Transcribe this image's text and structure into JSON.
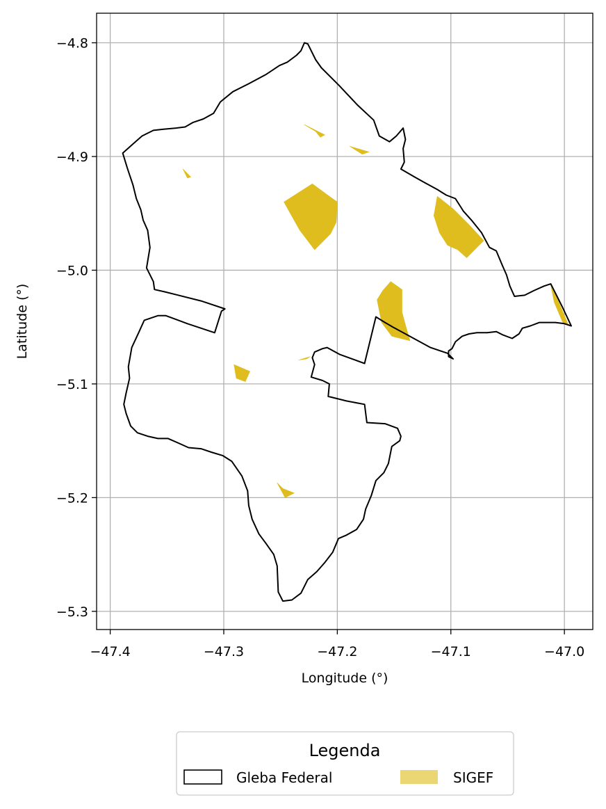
{
  "chart_data": {
    "type": "map",
    "xlabel": "Longitude (°)",
    "ylabel": "Latitude (°)",
    "xlim": [
      -47.412,
      -46.975
    ],
    "ylim": [
      -5.316,
      -4.774
    ],
    "xticks": [
      -47.4,
      -47.3,
      -47.2,
      -47.1,
      -47.0
    ],
    "yticks": [
      -4.8,
      -4.9,
      -5.0,
      -5.1,
      -5.2,
      -5.3
    ],
    "xtick_labels": [
      "−47.4",
      "−47.3",
      "−47.2",
      "−47.1",
      "−47.0"
    ],
    "ytick_labels": [
      "−4.8",
      "−4.9",
      "−5.0",
      "−5.1",
      "−5.2",
      "−5.3"
    ],
    "grid": true,
    "legend": {
      "title": "Legenda",
      "placement": "bottom-center",
      "entries": [
        {
          "label": "Gleba Federal",
          "style": "outline",
          "color": "#000000"
        },
        {
          "label": "SIGEF",
          "style": "fill",
          "color": "#dfbd1f"
        }
      ]
    },
    "layers": [
      {
        "name": "Gleba Federal",
        "kind": "polygon-outline",
        "color": "#000000",
        "coordinates": [
          [
            -47.229,
            -4.8
          ],
          [
            -47.226,
            -4.801
          ],
          [
            -47.219,
            -4.815
          ],
          [
            -47.214,
            -4.822
          ],
          [
            -47.198,
            -4.838
          ],
          [
            -47.182,
            -4.855
          ],
          [
            -47.168,
            -4.868
          ],
          [
            -47.163,
            -4.882
          ],
          [
            -47.154,
            -4.887
          ],
          [
            -47.148,
            -4.882
          ],
          [
            -47.142,
            -4.875
          ],
          [
            -47.14,
            -4.885
          ],
          [
            -47.142,
            -4.893
          ],
          [
            -47.141,
            -4.905
          ],
          [
            -47.144,
            -4.911
          ],
          [
            -47.132,
            -4.918
          ],
          [
            -47.123,
            -4.923
          ],
          [
            -47.112,
            -4.929
          ],
          [
            -47.104,
            -4.934
          ],
          [
            -47.096,
            -4.937
          ],
          [
            -47.089,
            -4.948
          ],
          [
            -47.081,
            -4.957
          ],
          [
            -47.073,
            -4.967
          ],
          [
            -47.066,
            -4.98
          ],
          [
            -47.06,
            -4.983
          ],
          [
            -47.055,
            -4.995
          ],
          [
            -47.051,
            -5.004
          ],
          [
            -47.048,
            -5.014
          ],
          [
            -47.044,
            -5.023
          ],
          [
            -47.035,
            -5.022
          ],
          [
            -47.027,
            -5.018
          ],
          [
            -47.018,
            -5.014
          ],
          [
            -47.012,
            -5.012
          ],
          [
            -47.002,
            -5.032
          ],
          [
            -46.994,
            -5.049
          ],
          [
            -47.0,
            -5.047
          ],
          [
            -47.008,
            -5.046
          ],
          [
            -47.015,
            -5.046
          ],
          [
            -47.022,
            -5.046
          ],
          [
            -47.03,
            -5.049
          ],
          [
            -47.037,
            -5.051
          ],
          [
            -47.04,
            -5.056
          ],
          [
            -47.046,
            -5.06
          ],
          [
            -47.054,
            -5.057
          ],
          [
            -47.06,
            -5.054
          ],
          [
            -47.068,
            -5.055
          ],
          [
            -47.077,
            -5.055
          ],
          [
            -47.084,
            -5.056
          ],
          [
            -47.09,
            -5.058
          ],
          [
            -47.096,
            -5.063
          ],
          [
            -47.099,
            -5.069
          ],
          [
            -47.102,
            -5.071
          ],
          [
            -47.102,
            -5.076
          ],
          [
            -47.098,
            -5.078
          ],
          [
            -47.103,
            -5.073
          ],
          [
            -47.118,
            -5.068
          ],
          [
            -47.14,
            -5.056
          ],
          [
            -47.151,
            -5.05
          ],
          [
            -47.158,
            -5.046
          ],
          [
            -47.166,
            -5.041
          ],
          [
            -47.176,
            -5.082
          ],
          [
            -47.198,
            -5.074
          ],
          [
            -47.209,
            -5.068
          ],
          [
            -47.213,
            -5.069
          ],
          [
            -47.22,
            -5.072
          ],
          [
            -47.222,
            -5.077
          ],
          [
            -47.22,
            -5.083
          ],
          [
            -47.223,
            -5.094
          ],
          [
            -47.213,
            -5.097
          ],
          [
            -47.207,
            -5.1
          ],
          [
            -47.208,
            -5.111
          ],
          [
            -47.192,
            -5.115
          ],
          [
            -47.176,
            -5.118
          ],
          [
            -47.174,
            -5.134
          ],
          [
            -47.158,
            -5.135
          ],
          [
            -47.147,
            -5.139
          ],
          [
            -47.144,
            -5.146
          ],
          [
            -47.145,
            -5.15
          ],
          [
            -47.152,
            -5.155
          ],
          [
            -47.155,
            -5.17
          ],
          [
            -47.159,
            -5.178
          ],
          [
            -47.166,
            -5.185
          ],
          [
            -47.17,
            -5.198
          ],
          [
            -47.175,
            -5.21
          ],
          [
            -47.177,
            -5.219
          ],
          [
            -47.183,
            -5.228
          ],
          [
            -47.192,
            -5.233
          ],
          [
            -47.199,
            -5.236
          ],
          [
            -47.204,
            -5.248
          ],
          [
            -47.211,
            -5.257
          ],
          [
            -47.218,
            -5.265
          ],
          [
            -47.226,
            -5.272
          ],
          [
            -47.232,
            -5.284
          ],
          [
            -47.24,
            -5.29
          ],
          [
            -47.248,
            -5.291
          ],
          [
            -47.252,
            -5.283
          ],
          [
            -47.253,
            -5.26
          ],
          [
            -47.256,
            -5.25
          ],
          [
            -47.263,
            -5.24
          ],
          [
            -47.269,
            -5.232
          ],
          [
            -47.275,
            -5.219
          ],
          [
            -47.278,
            -5.207
          ],
          [
            -47.279,
            -5.194
          ],
          [
            -47.284,
            -5.181
          ],
          [
            -47.293,
            -5.168
          ],
          [
            -47.301,
            -5.163
          ],
          [
            -47.311,
            -5.16
          ],
          [
            -47.32,
            -5.157
          ],
          [
            -47.331,
            -5.156
          ],
          [
            -47.34,
            -5.152
          ],
          [
            -47.349,
            -5.148
          ],
          [
            -47.358,
            -5.148
          ],
          [
            -47.367,
            -5.146
          ],
          [
            -47.376,
            -5.143
          ],
          [
            -47.382,
            -5.137
          ],
          [
            -47.386,
            -5.126
          ],
          [
            -47.388,
            -5.118
          ],
          [
            -47.386,
            -5.108
          ],
          [
            -47.383,
            -5.095
          ],
          [
            -47.384,
            -5.085
          ],
          [
            -47.381,
            -5.068
          ],
          [
            -47.375,
            -5.055
          ],
          [
            -47.37,
            -5.044
          ],
          [
            -47.358,
            -5.04
          ],
          [
            -47.351,
            -5.04
          ],
          [
            -47.332,
            -5.047
          ],
          [
            -47.308,
            -5.055
          ],
          [
            -47.302,
            -5.036
          ],
          [
            -47.299,
            -5.034
          ],
          [
            -47.32,
            -5.027
          ],
          [
            -47.352,
            -5.019
          ],
          [
            -47.361,
            -5.017
          ],
          [
            -47.362,
            -5.01
          ],
          [
            -47.368,
            -4.998
          ],
          [
            -47.365,
            -4.98
          ],
          [
            -47.367,
            -4.965
          ],
          [
            -47.371,
            -4.956
          ],
          [
            -47.373,
            -4.947
          ],
          [
            -47.377,
            -4.937
          ],
          [
            -47.38,
            -4.925
          ],
          [
            -47.385,
            -4.91
          ],
          [
            -47.389,
            -4.897
          ],
          [
            -47.38,
            -4.889
          ],
          [
            -47.372,
            -4.882
          ],
          [
            -47.362,
            -4.877
          ],
          [
            -47.353,
            -4.876
          ],
          [
            -47.342,
            -4.875
          ],
          [
            -47.334,
            -4.874
          ],
          [
            -47.327,
            -4.87
          ],
          [
            -47.318,
            -4.867
          ],
          [
            -47.309,
            -4.862
          ],
          [
            -47.303,
            -4.852
          ],
          [
            -47.292,
            -4.843
          ],
          [
            -47.278,
            -4.836
          ],
          [
            -47.263,
            -4.828
          ],
          [
            -47.251,
            -4.82
          ],
          [
            -47.244,
            -4.817
          ],
          [
            -47.236,
            -4.811
          ],
          [
            -47.232,
            -4.807
          ],
          [
            -47.229,
            -4.8
          ]
        ]
      },
      {
        "name": "SIGEF",
        "kind": "polygon-fill",
        "color": "#dfbd1f",
        "polygons": [
          [
            [
              -47.222,
              -4.924
            ],
            [
              -47.207,
              -4.935
            ],
            [
              -47.2,
              -4.94
            ],
            [
              -47.201,
              -4.958
            ],
            [
              -47.206,
              -4.968
            ],
            [
              -47.22,
              -4.982
            ],
            [
              -47.233,
              -4.965
            ],
            [
              -47.247,
              -4.94
            ],
            [
              -47.236,
              -4.933
            ],
            [
              -47.222,
              -4.924
            ]
          ],
          [
            [
              -47.112,
              -4.935
            ],
            [
              -47.098,
              -4.946
            ],
            [
              -47.084,
              -4.96
            ],
            [
              -47.071,
              -4.974
            ],
            [
              -47.077,
              -4.98
            ],
            [
              -47.086,
              -4.989
            ],
            [
              -47.094,
              -4.982
            ],
            [
              -47.103,
              -4.978
            ],
            [
              -47.11,
              -4.967
            ],
            [
              -47.115,
              -4.952
            ],
            [
              -47.112,
              -4.935
            ]
          ],
          [
            [
              -47.143,
              -5.017
            ],
            [
              -47.153,
              -5.01
            ],
            [
              -47.16,
              -5.018
            ],
            [
              -47.165,
              -5.026
            ],
            [
              -47.161,
              -5.046
            ],
            [
              -47.152,
              -5.058
            ],
            [
              -47.136,
              -5.062
            ],
            [
              -47.14,
              -5.048
            ],
            [
              -47.143,
              -5.037
            ],
            [
              -47.143,
              -5.017
            ]
          ],
          [
            [
              -47.012,
              -5.013
            ],
            [
              -47.005,
              -5.028
            ],
            [
              -46.997,
              -5.047
            ],
            [
              -47.001,
              -5.047
            ],
            [
              -47.009,
              -5.028
            ],
            [
              -47.012,
              -5.013
            ]
          ],
          [
            [
              -47.229,
              -4.872
            ],
            [
              -47.219,
              -4.878
            ],
            [
              -47.215,
              -4.883
            ],
            [
              -47.211,
              -4.881
            ],
            [
              -47.229,
              -4.872
            ]
          ],
          [
            [
              -47.189,
              -4.891
            ],
            [
              -47.178,
              -4.898
            ],
            [
              -47.172,
              -4.896
            ],
            [
              -47.189,
              -4.891
            ]
          ],
          [
            [
              -47.336,
              -4.911
            ],
            [
              -47.332,
              -4.919
            ],
            [
              -47.329,
              -4.918
            ],
            [
              -47.336,
              -4.911
            ]
          ],
          [
            [
              -47.291,
              -5.083
            ],
            [
              -47.277,
              -5.089
            ],
            [
              -47.281,
              -5.098
            ],
            [
              -47.289,
              -5.095
            ],
            [
              -47.291,
              -5.083
            ]
          ],
          [
            [
              -47.224,
              -5.076
            ],
            [
              -47.234,
              -5.079
            ],
            [
              -47.227,
              -5.078
            ],
            [
              -47.224,
              -5.076
            ]
          ],
          [
            [
              -47.238,
              -5.196
            ],
            [
              -47.248,
              -5.192
            ],
            [
              -47.253,
              -5.187
            ],
            [
              -47.246,
              -5.2
            ],
            [
              -47.238,
              -5.196
            ]
          ]
        ]
      }
    ]
  }
}
